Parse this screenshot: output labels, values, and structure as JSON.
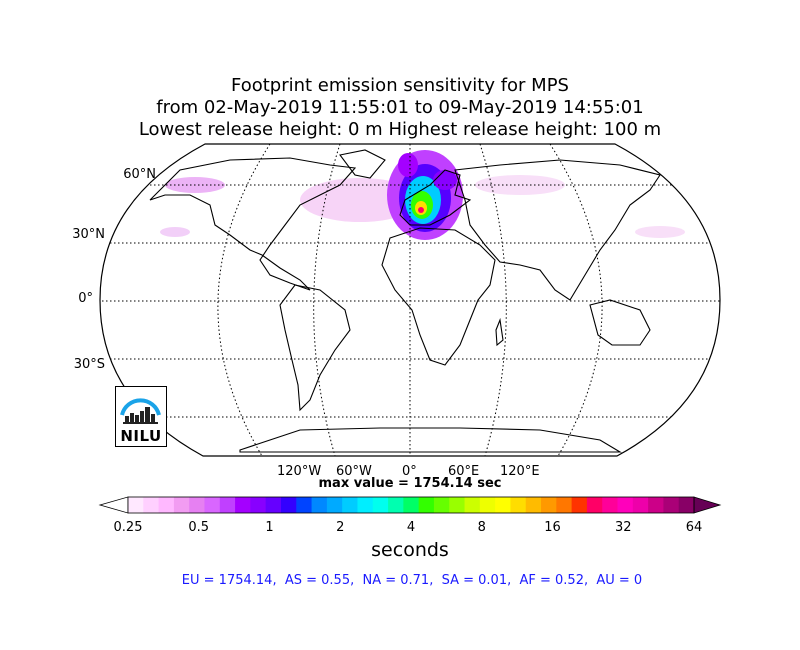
{
  "title": {
    "line1": "Footprint emission sensitivity for MPS",
    "line2": "from 02-May-2019 11:55:01 to 09-May-2019 14:55:01",
    "line3": "Lowest release height: 0 m       Highest release height: 100 m"
  },
  "map": {
    "projection": "Robinson",
    "lat_labels": [
      "60°N",
      "30°N",
      "0°",
      "30°S"
    ],
    "lon_labels": [
      "120°W",
      "60°W",
      "0°",
      "60°E",
      "120°E"
    ]
  },
  "max_value_text": "max value = 1754.14 sec",
  "colorbar": {
    "ticks": [
      "0.25",
      "0.5",
      "1",
      "2",
      "4",
      "8",
      "16",
      "32",
      "64"
    ],
    "label": "seconds",
    "colors": [
      "#ffe8ff",
      "#ffd0ff",
      "#ffb8ff",
      "#f29cf2",
      "#e680f2",
      "#d966ff",
      "#c040ff",
      "#a400ff",
      "#8800ff",
      "#6600ff",
      "#3300ff",
      "#0044ff",
      "#0088ff",
      "#00aaff",
      "#00ccff",
      "#00eeff",
      "#00ffee",
      "#00ffb0",
      "#00ff66",
      "#33ff00",
      "#66ff00",
      "#99ff00",
      "#ccff00",
      "#eeff00",
      "#ffff00",
      "#ffdd00",
      "#ffbb00",
      "#ff9900",
      "#ff7700",
      "#ff3300",
      "#ff0066",
      "#ff0099",
      "#ff00bb",
      "#ee00aa",
      "#cc0088",
      "#aa0077",
      "#880066"
    ]
  },
  "stats_text": "EU = 1754.14,  AS = 0.55,  NA = 0.71,  SA = 0.01,  AF = 0.52,  AU = 0",
  "logo": {
    "text": "NILU"
  }
}
